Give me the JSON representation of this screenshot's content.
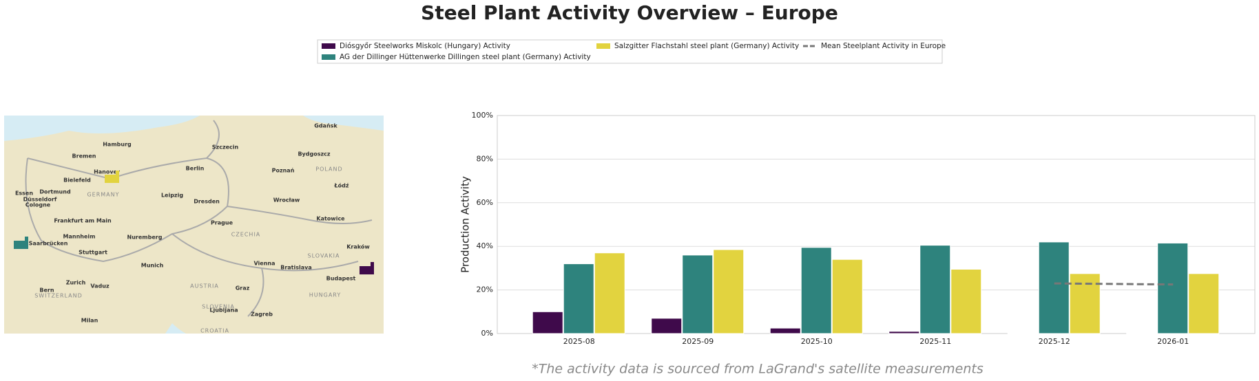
{
  "chart_data": {
    "type": "bar",
    "title": "Steel Plant Activity Overview – Europe",
    "ylabel": "Production Activity",
    "categories": [
      "2025-08",
      "2025-09",
      "2025-10",
      "2025-11",
      "2025-12",
      "2026-01"
    ],
    "series": [
      {
        "name": "Diósgyőr Steelworks Miskolc (Hungary) Activity",
        "color": "#3f0a4b",
        "values": [
          10,
          7,
          2.5,
          1,
          0.3,
          0.3
        ]
      },
      {
        "name": "AG der Dillinger Hüttenwerke Dillingen steel plant (Germany) Activity",
        "color": "#2e837d",
        "values": [
          32,
          36,
          39.5,
          40.5,
          42,
          41.5
        ]
      },
      {
        "name": "Salzgitter Flachstahl steel plant (Germany) Activity",
        "color": "#e2d33f",
        "values": [
          37,
          38.5,
          34,
          29.5,
          27.5,
          27.5
        ]
      },
      {
        "name": "Mean Steelplant Activity in Europe",
        "color": "#777777",
        "type": "line",
        "values": [
          null,
          null,
          null,
          null,
          23,
          22.5
        ]
      }
    ],
    "ylim": [
      0,
      100
    ],
    "yticks": [
      {
        "value": 0,
        "label": "0%"
      },
      {
        "value": 20,
        "label": "20%"
      },
      {
        "value": 40,
        "label": "40%"
      },
      {
        "value": 60,
        "label": "60%"
      },
      {
        "value": 80,
        "label": "80%"
      },
      {
        "value": 100,
        "label": "100%"
      }
    ],
    "grid": true,
    "legend": "top",
    "footnote": "*The activity data is sourced from LaGrand's satellite measurements"
  },
  "map": {
    "labels": [
      "Hamburg",
      "Bremen",
      "Hanover",
      "Berlin",
      "Bielefeld",
      "Dortmund",
      "Essen",
      "Düsseldorf",
      "Cologne",
      "Leipzig",
      "Dresden",
      "Frankfurt am Main",
      "Mannheim",
      "Nuremberg",
      "Stuttgart",
      "Munich",
      "Prague",
      "Vienna",
      "Bratislava",
      "Budapest",
      "Zurich",
      "Bern",
      "Vaduz",
      "Milan",
      "Zagreb",
      "Ljubljana",
      "Graz",
      "Szczecin",
      "Poznań",
      "Wrocław",
      "Bydgoszcz",
      "Łódź",
      "Katowice",
      "Kraków",
      "Gdańsk",
      "Saarbrücken"
    ],
    "countries": [
      "GERMANY",
      "POLAND",
      "CZECHIA",
      "AUSTRIA",
      "SLOVAKIA",
      "HUNGARY",
      "SWITZERLAND",
      "SLOVENIA",
      "CROATIA"
    ]
  }
}
